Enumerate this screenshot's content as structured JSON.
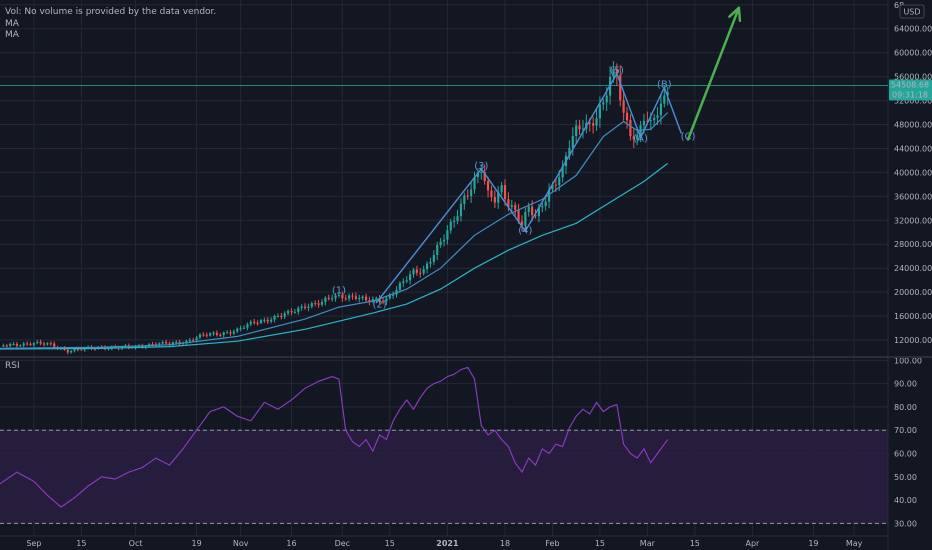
{
  "legend": {
    "vol_note": "Vol: No volume is provided by the data vendor.",
    "ma1": "MA",
    "ma2": "MA",
    "rsi": "RSI"
  },
  "currency": "USD",
  "price_tag": {
    "price": "54508.68",
    "countdown": "09:31:18"
  },
  "colors": {
    "background": "#131722",
    "grid": "#242836",
    "up": "#26a69a",
    "down": "#ef5350",
    "ma_fast": "#3d8fc7",
    "ma_slow": "#29b6c6",
    "wave_line": "#4a8fd8",
    "arrow": "#4caf50",
    "rsi_line": "#8e3cc8",
    "rsi_band": "#2a1d3f"
  },
  "chart_data": [
    {
      "type": "candlestick",
      "price_axis": {
        "min": 9500,
        "max": 68800,
        "ticks": [
          "12000.00",
          "16000.00",
          "20000.00",
          "24000.00",
          "28000.00",
          "32000.00",
          "36000.00",
          "40000.00",
          "44000.00",
          "48000.00",
          "52000.00",
          "56000.00",
          "60000.00",
          "64000.00",
          "68"
        ]
      },
      "x_axis": {
        "labels": [
          {
            "label": "Sep",
            "day": 0
          },
          {
            "label": "15",
            "day": 14
          },
          {
            "label": "Oct",
            "day": 30
          },
          {
            "label": "19",
            "day": 48
          },
          {
            "label": "Nov",
            "day": 61
          },
          {
            "label": "16",
            "day": 76
          },
          {
            "label": "Dec",
            "day": 91
          },
          {
            "label": "15",
            "day": 105
          },
          {
            "label": "2021",
            "day": 122
          },
          {
            "label": "18",
            "day": 139
          },
          {
            "label": "Feb",
            "day": 153
          },
          {
            "label": "15",
            "day": 167
          },
          {
            "label": "Mar",
            "day": 181
          },
          {
            "label": "15",
            "day": 195
          },
          {
            "label": "Apr",
            "day": 212
          },
          {
            "label": "19",
            "day": 230
          },
          {
            "label": "May",
            "day": 242
          }
        ],
        "range": [
          -10,
          252
        ]
      },
      "close_path": [
        [
          -10,
          11000
        ],
        [
          0,
          11500
        ],
        [
          5,
          11200
        ],
        [
          10,
          10200
        ],
        [
          15,
          10500
        ],
        [
          20,
          10800
        ],
        [
          25,
          10700
        ],
        [
          30,
          10900
        ],
        [
          35,
          11300
        ],
        [
          40,
          11400
        ],
        [
          45,
          11800
        ],
        [
          50,
          12800
        ],
        [
          55,
          13100
        ],
        [
          60,
          13600
        ],
        [
          65,
          15000
        ],
        [
          70,
          15600
        ],
        [
          75,
          16400
        ],
        [
          80,
          17800
        ],
        [
          85,
          18200
        ],
        [
          88,
          19200
        ],
        [
          91,
          19400
        ],
        [
          95,
          19200
        ],
        [
          98,
          18500
        ],
        [
          101,
          18700
        ],
        [
          104,
          18900
        ],
        [
          108,
          21000
        ],
        [
          112,
          23300
        ],
        [
          115,
          23800
        ],
        [
          118,
          26500
        ],
        [
          121,
          29000
        ],
        [
          124,
          32000
        ],
        [
          127,
          36000
        ],
        [
          130,
          38700
        ],
        [
          132,
          40500
        ],
        [
          134,
          36000
        ],
        [
          136,
          35500
        ],
        [
          138,
          37600
        ],
        [
          140,
          35000
        ],
        [
          142,
          33500
        ],
        [
          144,
          31000
        ],
        [
          146,
          34000
        ],
        [
          148,
          32500
        ],
        [
          150,
          35000
        ],
        [
          152,
          37000
        ],
        [
          154,
          38500
        ],
        [
          156,
          40000
        ],
        [
          158,
          44500
        ],
        [
          160,
          47000
        ],
        [
          162,
          48500
        ],
        [
          164,
          48000
        ],
        [
          166,
          49500
        ],
        [
          168,
          51000
        ],
        [
          170,
          55500
        ],
        [
          172,
          56500
        ],
        [
          174,
          50000
        ],
        [
          176,
          47000
        ],
        [
          178,
          45500
        ],
        [
          180,
          49000
        ],
        [
          182,
          47500
        ],
        [
          184,
          50500
        ],
        [
          186,
          52500
        ],
        [
          187,
          54500
        ]
      ],
      "ma_fast": [
        [
          -10,
          10600
        ],
        [
          20,
          10800
        ],
        [
          40,
          11200
        ],
        [
          60,
          12600
        ],
        [
          80,
          15500
        ],
        [
          90,
          17500
        ],
        [
          100,
          18500
        ],
        [
          110,
          20500
        ],
        [
          120,
          24000
        ],
        [
          130,
          29500
        ],
        [
          140,
          33000
        ],
        [
          150,
          35500
        ],
        [
          160,
          39500
        ],
        [
          168,
          46000
        ],
        [
          174,
          48500
        ],
        [
          178,
          47000
        ],
        [
          182,
          47200
        ],
        [
          187,
          50000
        ]
      ],
      "ma_slow": [
        [
          -10,
          10500
        ],
        [
          20,
          10600
        ],
        [
          40,
          10900
        ],
        [
          60,
          11800
        ],
        [
          80,
          13800
        ],
        [
          100,
          16500
        ],
        [
          110,
          18000
        ],
        [
          120,
          20500
        ],
        [
          130,
          24000
        ],
        [
          140,
          27000
        ],
        [
          150,
          29500
        ],
        [
          160,
          31500
        ],
        [
          170,
          35000
        ],
        [
          180,
          38500
        ],
        [
          187,
          41500
        ]
      ],
      "waves": [
        {
          "label": "(1)",
          "day": 90,
          "price": 19800
        },
        {
          "label": "(2)",
          "day": 102,
          "price": 17400
        },
        {
          "label": "(3)",
          "day": 132,
          "price": 40600
        },
        {
          "label": "(4)",
          "day": 145,
          "price": 29800
        },
        {
          "label": "(5)",
          "day": 172,
          "price": 56500
        },
        {
          "label": "(A)",
          "day": 179,
          "price": 45200
        },
        {
          "label": "(B)",
          "day": 186,
          "price": 54200
        },
        {
          "label": "(C)",
          "day": 193,
          "price": 45500
        }
      ],
      "wave_path": [
        [
          101,
          18200
        ],
        [
          132,
          40600
        ],
        [
          145,
          30200
        ],
        [
          172,
          56500
        ],
        [
          179,
          45800
        ],
        [
          186,
          54200
        ],
        [
          191,
          46500
        ]
      ],
      "arrow_path": [
        [
          193,
          45500
        ],
        [
          208,
          67500
        ]
      ]
    },
    {
      "type": "line",
      "title": "RSI",
      "y_axis": {
        "min": 25,
        "max": 101,
        "ticks": [
          "30.00",
          "40.00",
          "50.00",
          "60.00",
          "70.00",
          "80.00",
          "90.00",
          "100.00"
        ]
      },
      "band": [
        30,
        70
      ],
      "series": [
        [
          -10,
          47
        ],
        [
          -5,
          52
        ],
        [
          0,
          48
        ],
        [
          4,
          42
        ],
        [
          8,
          37
        ],
        [
          12,
          41
        ],
        [
          16,
          46
        ],
        [
          20,
          50
        ],
        [
          24,
          49
        ],
        [
          28,
          52
        ],
        [
          32,
          54
        ],
        [
          36,
          58
        ],
        [
          40,
          55
        ],
        [
          44,
          62
        ],
        [
          48,
          70
        ],
        [
          52,
          78
        ],
        [
          56,
          80
        ],
        [
          60,
          76
        ],
        [
          64,
          74
        ],
        [
          68,
          82
        ],
        [
          72,
          79
        ],
        [
          76,
          83
        ],
        [
          80,
          88
        ],
        [
          84,
          91
        ],
        [
          88,
          93
        ],
        [
          90,
          92
        ],
        [
          92,
          70
        ],
        [
          94,
          65
        ],
        [
          96,
          63
        ],
        [
          98,
          66
        ],
        [
          100,
          61
        ],
        [
          102,
          68
        ],
        [
          104,
          66
        ],
        [
          106,
          74
        ],
        [
          108,
          79
        ],
        [
          110,
          83
        ],
        [
          112,
          79
        ],
        [
          114,
          84
        ],
        [
          116,
          88
        ],
        [
          118,
          90
        ],
        [
          120,
          91
        ],
        [
          122,
          93
        ],
        [
          124,
          94
        ],
        [
          126,
          96
        ],
        [
          128,
          97
        ],
        [
          130,
          92
        ],
        [
          132,
          72
        ],
        [
          134,
          68
        ],
        [
          136,
          70
        ],
        [
          138,
          66
        ],
        [
          140,
          63
        ],
        [
          142,
          56
        ],
        [
          144,
          52
        ],
        [
          146,
          58
        ],
        [
          148,
          55
        ],
        [
          150,
          62
        ],
        [
          152,
          60
        ],
        [
          154,
          64
        ],
        [
          156,
          63
        ],
        [
          158,
          71
        ],
        [
          160,
          76
        ],
        [
          162,
          79
        ],
        [
          164,
          77
        ],
        [
          166,
          82
        ],
        [
          168,
          78
        ],
        [
          170,
          80
        ],
        [
          172,
          81
        ],
        [
          174,
          64
        ],
        [
          176,
          60
        ],
        [
          178,
          58
        ],
        [
          180,
          62
        ],
        [
          182,
          56
        ],
        [
          184,
          60
        ],
        [
          186,
          64
        ],
        [
          187,
          66
        ]
      ]
    }
  ]
}
